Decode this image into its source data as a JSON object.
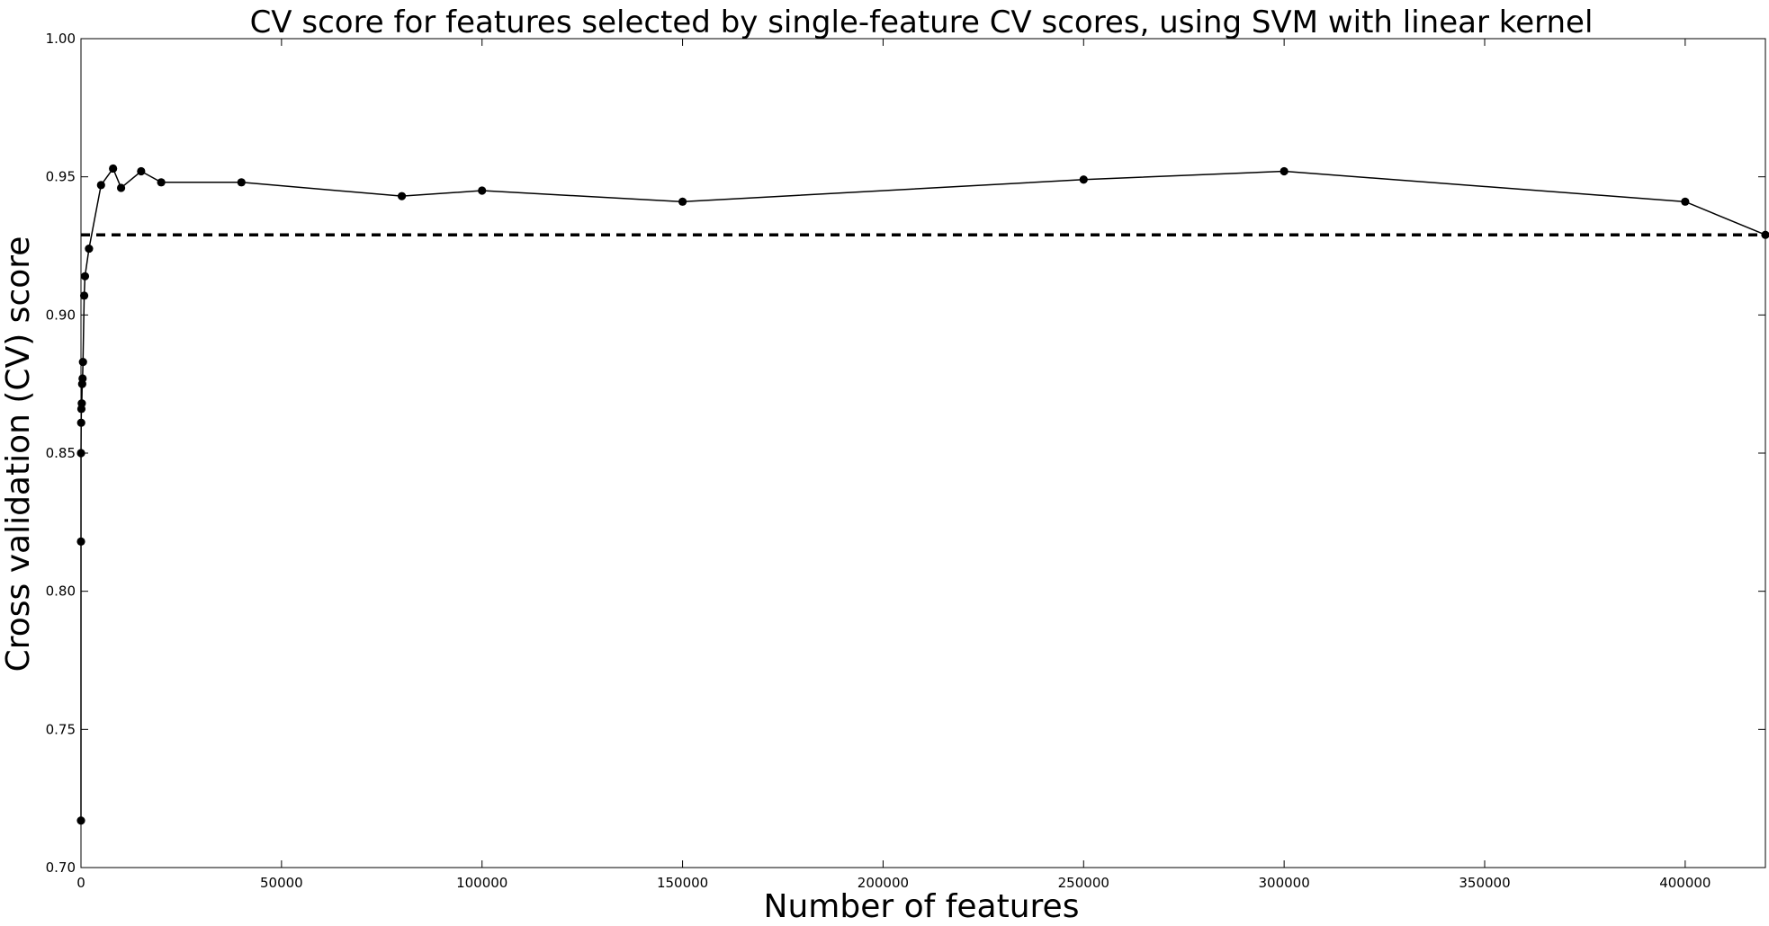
{
  "chart_data": {
    "type": "line",
    "title": "CV score for features selected by single-feature CV scores, using SVM with linear kernel",
    "xlabel": "Number of features",
    "ylabel": "Cross validation (CV) score",
    "xlim": [
      0,
      420000
    ],
    "ylim": [
      0.7,
      1.0
    ],
    "xticks": [
      0,
      50000,
      100000,
      150000,
      200000,
      250000,
      300000,
      350000,
      400000
    ],
    "yticks": [
      0.7,
      0.75,
      0.8,
      0.85,
      0.9,
      0.95,
      1.0
    ],
    "xtick_labels": [
      "0",
      "50000",
      "100000",
      "150000",
      "200000",
      "250000",
      "300000",
      "350000",
      "400000"
    ],
    "ytick_labels": [
      "0.70",
      "0.75",
      "0.80",
      "0.85",
      "0.90",
      "0.95",
      "1.00"
    ],
    "grid": false,
    "series": [
      {
        "style": "solid-with-markers",
        "color": "#000000",
        "points": [
          [
            1,
            0.717
          ],
          [
            5,
            0.818
          ],
          [
            10,
            0.85
          ],
          [
            50,
            0.861
          ],
          [
            100,
            0.866
          ],
          [
            200,
            0.868
          ],
          [
            300,
            0.875
          ],
          [
            400,
            0.877
          ],
          [
            500,
            0.883
          ],
          [
            800,
            0.907
          ],
          [
            1000,
            0.914
          ],
          [
            2000,
            0.924
          ],
          [
            5000,
            0.947
          ],
          [
            8000,
            0.953
          ],
          [
            10000,
            0.946
          ],
          [
            15000,
            0.952
          ],
          [
            20000,
            0.948
          ],
          [
            40000,
            0.948
          ],
          [
            80000,
            0.943
          ],
          [
            100000,
            0.945
          ],
          [
            150000,
            0.941
          ],
          [
            250000,
            0.949
          ],
          [
            300000,
            0.952
          ],
          [
            400000,
            0.941
          ],
          [
            420000,
            0.929
          ]
        ]
      },
      {
        "style": "dashed",
        "color": "#000000",
        "points": [
          [
            0,
            0.929
          ],
          [
            420000,
            0.929
          ]
        ]
      }
    ]
  }
}
